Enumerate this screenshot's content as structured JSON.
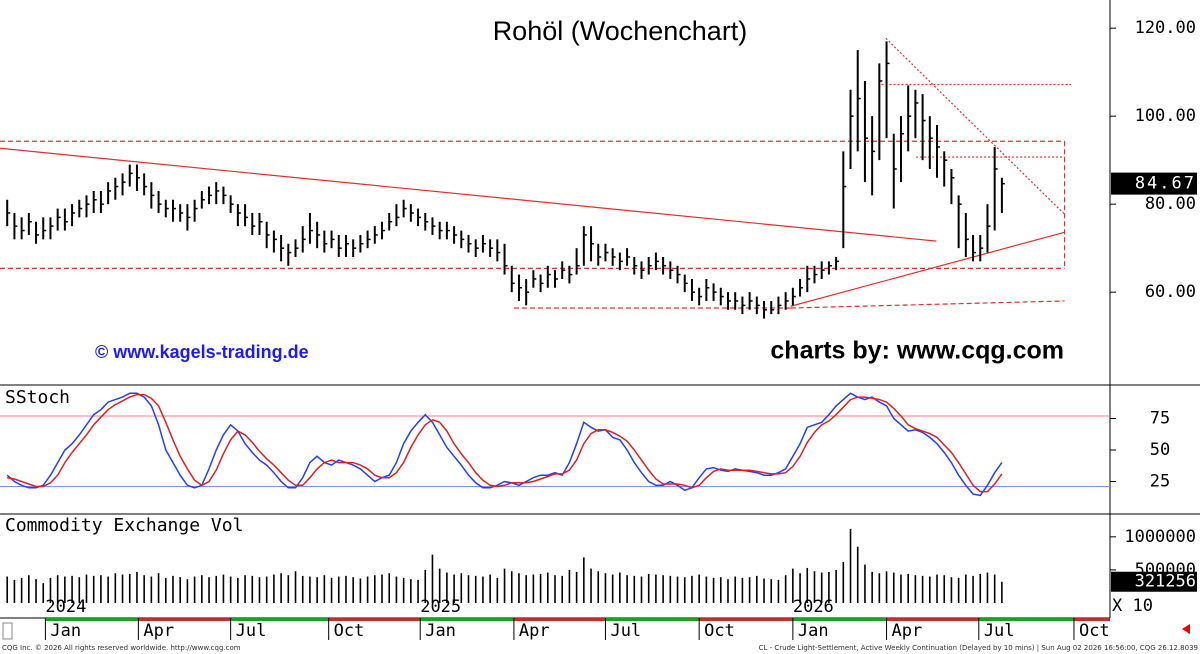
{
  "chart_data": [
    {
      "type": "ohlc",
      "title": "Rohöl (Wochenchart)",
      "watermark": "© www.kagels-trading.de",
      "source": "charts by: www.cqg.com",
      "color": "#000000",
      "ylim": [
        38.9,
        126.4
      ],
      "yticks": [
        {
          "value": 120,
          "label": "120.00"
        },
        {
          "value": 100,
          "label": "100.00"
        },
        {
          "value": 80,
          "label": "80.00"
        },
        {
          "value": 60,
          "label": "60.00"
        }
      ],
      "high": [
        81,
        78,
        77,
        78,
        76,
        77,
        77,
        79,
        79,
        80,
        81,
        82,
        83,
        83,
        85,
        86,
        87,
        89,
        89,
        87,
        85,
        83,
        81,
        81,
        80,
        80,
        81,
        83,
        84,
        85,
        84,
        82,
        80,
        80,
        78,
        78,
        76,
        74,
        73,
        71,
        72,
        75,
        78,
        76,
        74,
        74,
        73,
        73,
        72,
        73,
        74,
        75,
        76,
        78,
        80,
        81,
        80,
        79,
        78,
        77,
        76,
        76,
        75,
        74,
        73,
        72,
        73,
        72,
        72,
        71,
        66,
        64,
        63,
        65,
        64,
        66,
        65,
        67,
        66,
        70,
        75,
        75,
        71,
        71,
        70,
        69,
        70,
        68,
        67,
        68,
        69,
        68,
        67,
        66,
        64,
        63,
        61,
        63,
        62,
        61,
        60,
        60,
        59,
        60,
        59,
        58,
        58,
        59,
        60,
        61,
        63,
        66,
        66,
        67,
        67,
        68,
        92,
        106,
        115,
        108,
        100,
        112,
        117,
        96,
        100,
        107,
        106,
        105,
        100,
        98,
        92,
        88,
        82,
        78,
        73,
        73,
        80,
        93,
        86
      ],
      "low": [
        75,
        72,
        72,
        73,
        71,
        72,
        72,
        74,
        74,
        75,
        77,
        77,
        78,
        78,
        80,
        81,
        82,
        84,
        83,
        82,
        79,
        78,
        77,
        76,
        76,
        74,
        76,
        79,
        80,
        80,
        80,
        78,
        75,
        75,
        73,
        73,
        70,
        69,
        67,
        66,
        68,
        69,
        71,
        70,
        69,
        70,
        68,
        68,
        68,
        69,
        70,
        71,
        72,
        74,
        75,
        77,
        76,
        75,
        74,
        73,
        72,
        72,
        71,
        70,
        69,
        68,
        69,
        68,
        67,
        64,
        60,
        58,
        57,
        61,
        60,
        61,
        61,
        63,
        62,
        64,
        66,
        67,
        66,
        67,
        66,
        65,
        66,
        64,
        63,
        64,
        65,
        64,
        63,
        62,
        60,
        58,
        57,
        58,
        58,
        57,
        56,
        56,
        55,
        56,
        55,
        54,
        55,
        55,
        56,
        57,
        59,
        60,
        62,
        63,
        64,
        65,
        70,
        88,
        92,
        85,
        82,
        90,
        95,
        79,
        85,
        92,
        95,
        90,
        88,
        86,
        84,
        80,
        70,
        68,
        67,
        67,
        69,
        74,
        78
      ],
      "close": [
        78,
        75,
        74,
        76,
        73,
        74,
        75,
        77,
        76,
        78,
        79,
        80,
        81,
        80,
        83,
        84,
        85,
        87,
        86,
        84,
        82,
        80,
        79,
        79,
        78,
        77,
        79,
        81,
        82,
        83,
        82,
        80,
        78,
        77,
        75,
        76,
        73,
        72,
        70,
        69,
        70,
        72,
        74,
        73,
        71,
        72,
        70,
        71,
        70,
        71,
        72,
        73,
        74,
        76,
        77,
        79,
        78,
        77,
        76,
        75,
        74,
        74,
        73,
        72,
        71,
        70,
        71,
        70,
        69,
        66,
        62,
        61,
        60,
        63,
        62,
        64,
        63,
        65,
        64,
        66,
        73,
        71,
        68,
        69,
        68,
        67,
        68,
        66,
        65,
        66,
        67,
        66,
        65,
        64,
        62,
        60,
        59,
        61,
        60,
        59,
        58,
        58,
        57,
        58,
        57,
        56,
        56,
        57,
        58,
        59,
        61,
        63,
        64,
        65,
        66,
        67,
        84,
        100,
        104,
        95,
        92,
        108,
        112,
        88,
        96,
        100,
        103,
        99,
        95,
        93,
        90,
        86,
        80,
        72,
        69,
        70,
        75,
        88,
        84.67
      ],
      "lines": [
        {
          "x": [
            -1,
            146.7
          ],
          "y": [
            94.3,
            94.3
          ],
          "color": "#e03030",
          "style": "dashed"
        },
        {
          "x": [
            -1,
            146.7
          ],
          "y": [
            65.4,
            65.4
          ],
          "color": "#e03030",
          "style": "dashed"
        },
        {
          "x": [
            146.7,
            146.7
          ],
          "y": [
            94.3,
            65.4
          ],
          "color": "#e03030",
          "style": "dashed"
        },
        {
          "x": [
            -1,
            128.9
          ],
          "y": [
            92.7,
            71.6
          ],
          "color": "#e03030",
          "style": "solid"
        },
        {
          "x": [
            70.3,
            108.7
          ],
          "y": [
            56.4,
            56.4
          ],
          "color": "#e03030",
          "style": "dashed"
        },
        {
          "x": [
            108.7,
            146.7
          ],
          "y": [
            56.4,
            58
          ],
          "color": "#e03030",
          "style": "dashed"
        },
        {
          "x": [
            108.7,
            146.7
          ],
          "y": [
            56.8,
            73.6
          ],
          "color": "#e03030",
          "style": "solid"
        },
        {
          "x": [
            121.9,
            146.7
          ],
          "y": [
            117.7,
            77.7
          ],
          "color": "#e03030",
          "style": "dotted"
        },
        {
          "x": [
            121.3,
            147.6
          ],
          "y": [
            107.2,
            107.2
          ],
          "color": "#e03030",
          "style": "dotted"
        },
        {
          "x": [
            126.1,
            146.7
          ],
          "y": [
            90.7,
            90.7
          ],
          "color": "#e03030",
          "style": "dotted"
        }
      ]
    },
    {
      "type": "line",
      "title": "SStoch",
      "ylim": [
        0,
        100
      ],
      "yticks": [
        25,
        50,
        75
      ],
      "hlines": [
        {
          "value": 77,
          "color": "#f08080"
        },
        {
          "value": 21,
          "color": "#8090ff"
        }
      ],
      "series": [
        {
          "color": "#2040ff",
          "values": [
            30,
            25,
            22,
            20,
            20,
            22,
            30,
            40,
            50,
            55,
            62,
            70,
            78,
            82,
            88,
            90,
            92,
            95,
            95,
            92,
            85,
            70,
            50,
            40,
            30,
            22,
            20,
            22,
            35,
            50,
            62,
            70,
            65,
            55,
            48,
            42,
            38,
            32,
            25,
            20,
            20,
            28,
            40,
            45,
            40,
            38,
            42,
            40,
            38,
            35,
            30,
            25,
            28,
            30,
            40,
            55,
            65,
            72,
            78,
            72,
            62,
            52,
            45,
            38,
            30,
            24,
            20,
            20,
            22,
            25,
            24,
            22,
            25,
            28,
            30,
            30,
            32,
            30,
            40,
            55,
            72,
            68,
            65,
            66,
            60,
            58,
            50,
            40,
            32,
            25,
            22,
            22,
            25,
            22,
            18,
            20,
            28,
            35,
            36,
            34,
            33,
            35,
            34,
            33,
            32,
            30,
            30,
            32,
            35,
            45,
            55,
            68,
            70,
            72,
            78,
            85,
            90,
            95,
            92,
            90,
            92,
            88,
            85,
            75,
            70,
            65,
            66,
            64,
            60,
            55,
            48,
            40,
            30,
            22,
            15,
            14,
            22,
            32,
            40
          ]
        },
        {
          "color": "#e02020",
          "values": [
            28,
            27,
            25,
            23,
            21,
            21,
            24,
            30,
            40,
            48,
            55,
            62,
            70,
            76,
            82,
            86,
            89,
            92,
            94,
            94,
            91,
            85,
            72,
            58,
            45,
            35,
            26,
            22,
            25,
            34,
            47,
            58,
            65,
            62,
            56,
            49,
            43,
            38,
            32,
            26,
            22,
            22,
            28,
            35,
            40,
            42,
            40,
            40,
            40,
            38,
            35,
            30,
            28,
            28,
            32,
            40,
            52,
            62,
            70,
            74,
            72,
            65,
            55,
            47,
            40,
            32,
            26,
            22,
            21,
            22,
            24,
            24,
            24,
            25,
            27,
            29,
            31,
            31,
            34,
            42,
            55,
            63,
            66,
            66,
            64,
            61,
            57,
            50,
            42,
            34,
            27,
            23,
            23,
            23,
            22,
            20,
            22,
            28,
            33,
            35,
            34,
            34,
            34,
            34,
            33,
            32,
            31,
            31,
            32,
            37,
            45,
            56,
            64,
            70,
            73,
            78,
            84,
            90,
            92,
            92,
            91,
            90,
            88,
            83,
            77,
            70,
            67,
            65,
            63,
            60,
            54,
            48,
            40,
            31,
            22,
            17,
            17,
            23,
            31
          ]
        }
      ]
    },
    {
      "type": "bar",
      "title": "Commodity Exchange Vol",
      "scale_label": "X 10",
      "color": "#000000",
      "ylim": [
        0,
        1330000
      ],
      "yticks": [
        1000000,
        500000
      ],
      "xlim": [
        -1,
        153
      ],
      "xticks": [
        {
          "value": 5.3,
          "label": "Jan"
        },
        {
          "value": 18.2,
          "label": "Apr"
        },
        {
          "value": 31,
          "label": "Jul"
        },
        {
          "value": 44.6,
          "label": "Oct"
        },
        {
          "value": 57.3,
          "label": "Jan"
        },
        {
          "value": 70.3,
          "label": "Apr"
        },
        {
          "value": 83,
          "label": "Jul"
        },
        {
          "value": 96,
          "label": "Oct"
        },
        {
          "value": 109,
          "label": "Jan"
        },
        {
          "value": 122,
          "label": "Apr"
        },
        {
          "value": 134.8,
          "label": "Jul"
        },
        {
          "value": 148,
          "label": "Oct"
        }
      ],
      "year_labels": [
        {
          "value": 5.3,
          "label": "2024"
        },
        {
          "value": 57.3,
          "label": "2025"
        },
        {
          "value": 109,
          "label": "2026"
        }
      ],
      "values": [
        400000,
        350000,
        380000,
        420000,
        360000,
        300000,
        380000,
        420000,
        400000,
        410000,
        390000,
        430000,
        410000,
        420000,
        400000,
        450000,
        430000,
        440000,
        470000,
        420000,
        400000,
        450000,
        380000,
        410000,
        390000,
        360000,
        400000,
        420000,
        390000,
        410000,
        430000,
        400000,
        380000,
        420000,
        410000,
        390000,
        400000,
        430000,
        450000,
        420000,
        480000,
        410000,
        400000,
        390000,
        420000,
        380000,
        400000,
        410000,
        390000,
        370000,
        400000,
        420000,
        430000,
        450000,
        400000,
        380000,
        360000,
        350000,
        500000,
        730000,
        520000,
        460000,
        430000,
        450000,
        420000,
        410000,
        400000,
        430000,
        380000,
        520000,
        480000,
        450000,
        420000,
        430000,
        440000,
        460000,
        420000,
        410000,
        500000,
        470000,
        690000,
        520000,
        480000,
        450000,
        430000,
        460000,
        420000,
        410000,
        400000,
        440000,
        430000,
        420000,
        410000,
        400000,
        390000,
        410000,
        430000,
        400000,
        380000,
        390000,
        360000,
        400000,
        380000,
        390000,
        410000,
        370000,
        360000,
        350000,
        420000,
        520000,
        450000,
        530000,
        480000,
        460000,
        470000,
        500000,
        620000,
        1120000,
        850000,
        580000,
        470000,
        450000,
        480000,
        460000,
        430000,
        440000,
        420000,
        410000,
        400000,
        430000,
        420000,
        390000,
        380000,
        430000,
        410000,
        440000,
        460000,
        430000,
        321256
      ]
    }
  ],
  "footer": {
    "left": "CQG Inc. © 2026 All rights reserved worldwide. http://www.cqg.com",
    "right": "CL - Crude Light-Settlement, Active Weekly Continuation (Delayed by 10 mins) | Sun Aug 02 2026 16:56:00, CQG 26.12.8039"
  }
}
